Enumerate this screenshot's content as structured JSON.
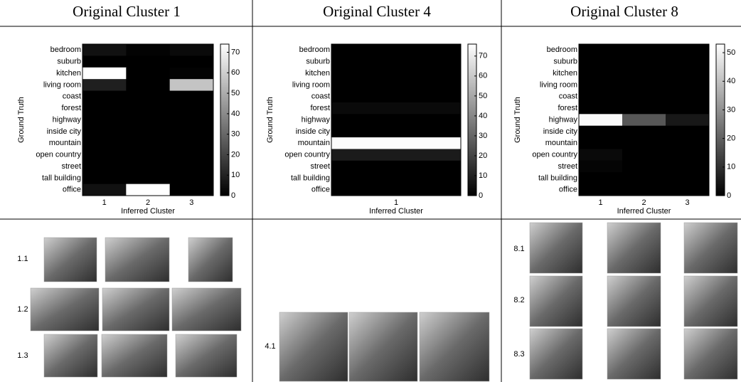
{
  "panels": [
    {
      "title": "Original Cluster 1",
      "chart_data": {
        "type": "heatmap",
        "colormap": "gray",
        "categories": [
          "1",
          "2",
          "3"
        ],
        "rows": [
          "bedroom",
          "suburb",
          "kitchen",
          "living room",
          "coast",
          "forest",
          "highway",
          "inside city",
          "mountain",
          "open country",
          "street",
          "tall building",
          "office"
        ],
        "values": [
          [
            5,
            1,
            3
          ],
          [
            0,
            0,
            0
          ],
          [
            74,
            0,
            1
          ],
          [
            9,
            0,
            57
          ],
          [
            0,
            0,
            0
          ],
          [
            0,
            0,
            0
          ],
          [
            0,
            0,
            0
          ],
          [
            0,
            0,
            0
          ],
          [
            0,
            0,
            0
          ],
          [
            0,
            0,
            0
          ],
          [
            0,
            0,
            0
          ],
          [
            0,
            0,
            0
          ],
          [
            5,
            74,
            0
          ]
        ],
        "xlabel": "Inferred Cluster",
        "ylabel": "Ground Truth",
        "clim": [
          0,
          74
        ],
        "cticks": [
          0,
          10,
          20,
          30,
          40,
          50,
          60,
          70
        ]
      },
      "image_labels": [
        "1.1",
        "1.2",
        "1.3"
      ]
    },
    {
      "title": "Original Cluster 4",
      "chart_data": {
        "type": "heatmap",
        "colormap": "gray",
        "categories": [
          "1"
        ],
        "rows": [
          "bedroom",
          "suburb",
          "kitchen",
          "living room",
          "coast",
          "forest",
          "highway",
          "inside city",
          "mountain",
          "open country",
          "street",
          "tall building",
          "office"
        ],
        "values": [
          [
            0
          ],
          [
            0
          ],
          [
            0
          ],
          [
            0
          ],
          [
            0
          ],
          [
            3
          ],
          [
            0
          ],
          [
            0
          ],
          [
            75
          ],
          [
            8
          ],
          [
            0
          ],
          [
            0
          ],
          [
            0
          ]
        ],
        "xlabel": "Inferred Cluster",
        "ylabel": "Ground Truth",
        "clim": [
          0,
          76
        ],
        "cticks": [
          0,
          10,
          20,
          30,
          40,
          50,
          60,
          70
        ]
      },
      "image_labels": [
        "4.1"
      ]
    },
    {
      "title": "Original Cluster 8",
      "chart_data": {
        "type": "heatmap",
        "colormap": "gray",
        "categories": [
          "1",
          "2",
          "3"
        ],
        "rows": [
          "bedroom",
          "suburb",
          "kitchen",
          "living room",
          "coast",
          "forest",
          "highway",
          "inside city",
          "mountain",
          "open country",
          "street",
          "tall building",
          "office"
        ],
        "values": [
          [
            0,
            0,
            0
          ],
          [
            0,
            0,
            0
          ],
          [
            0,
            0,
            0
          ],
          [
            0,
            0,
            0
          ],
          [
            0,
            0,
            0
          ],
          [
            0,
            0,
            0
          ],
          [
            52,
            18,
            5
          ],
          [
            0,
            0,
            0
          ],
          [
            0,
            0,
            0
          ],
          [
            2,
            0,
            0
          ],
          [
            1,
            0,
            0
          ],
          [
            0,
            0,
            0
          ],
          [
            0,
            0,
            0
          ]
        ],
        "xlabel": "Inferred Cluster",
        "ylabel": "Ground Truth",
        "clim": [
          0,
          53
        ],
        "cticks": [
          0,
          10,
          20,
          30,
          40,
          50
        ]
      },
      "image_labels": [
        "8.1",
        "8.2",
        "8.3"
      ]
    }
  ]
}
